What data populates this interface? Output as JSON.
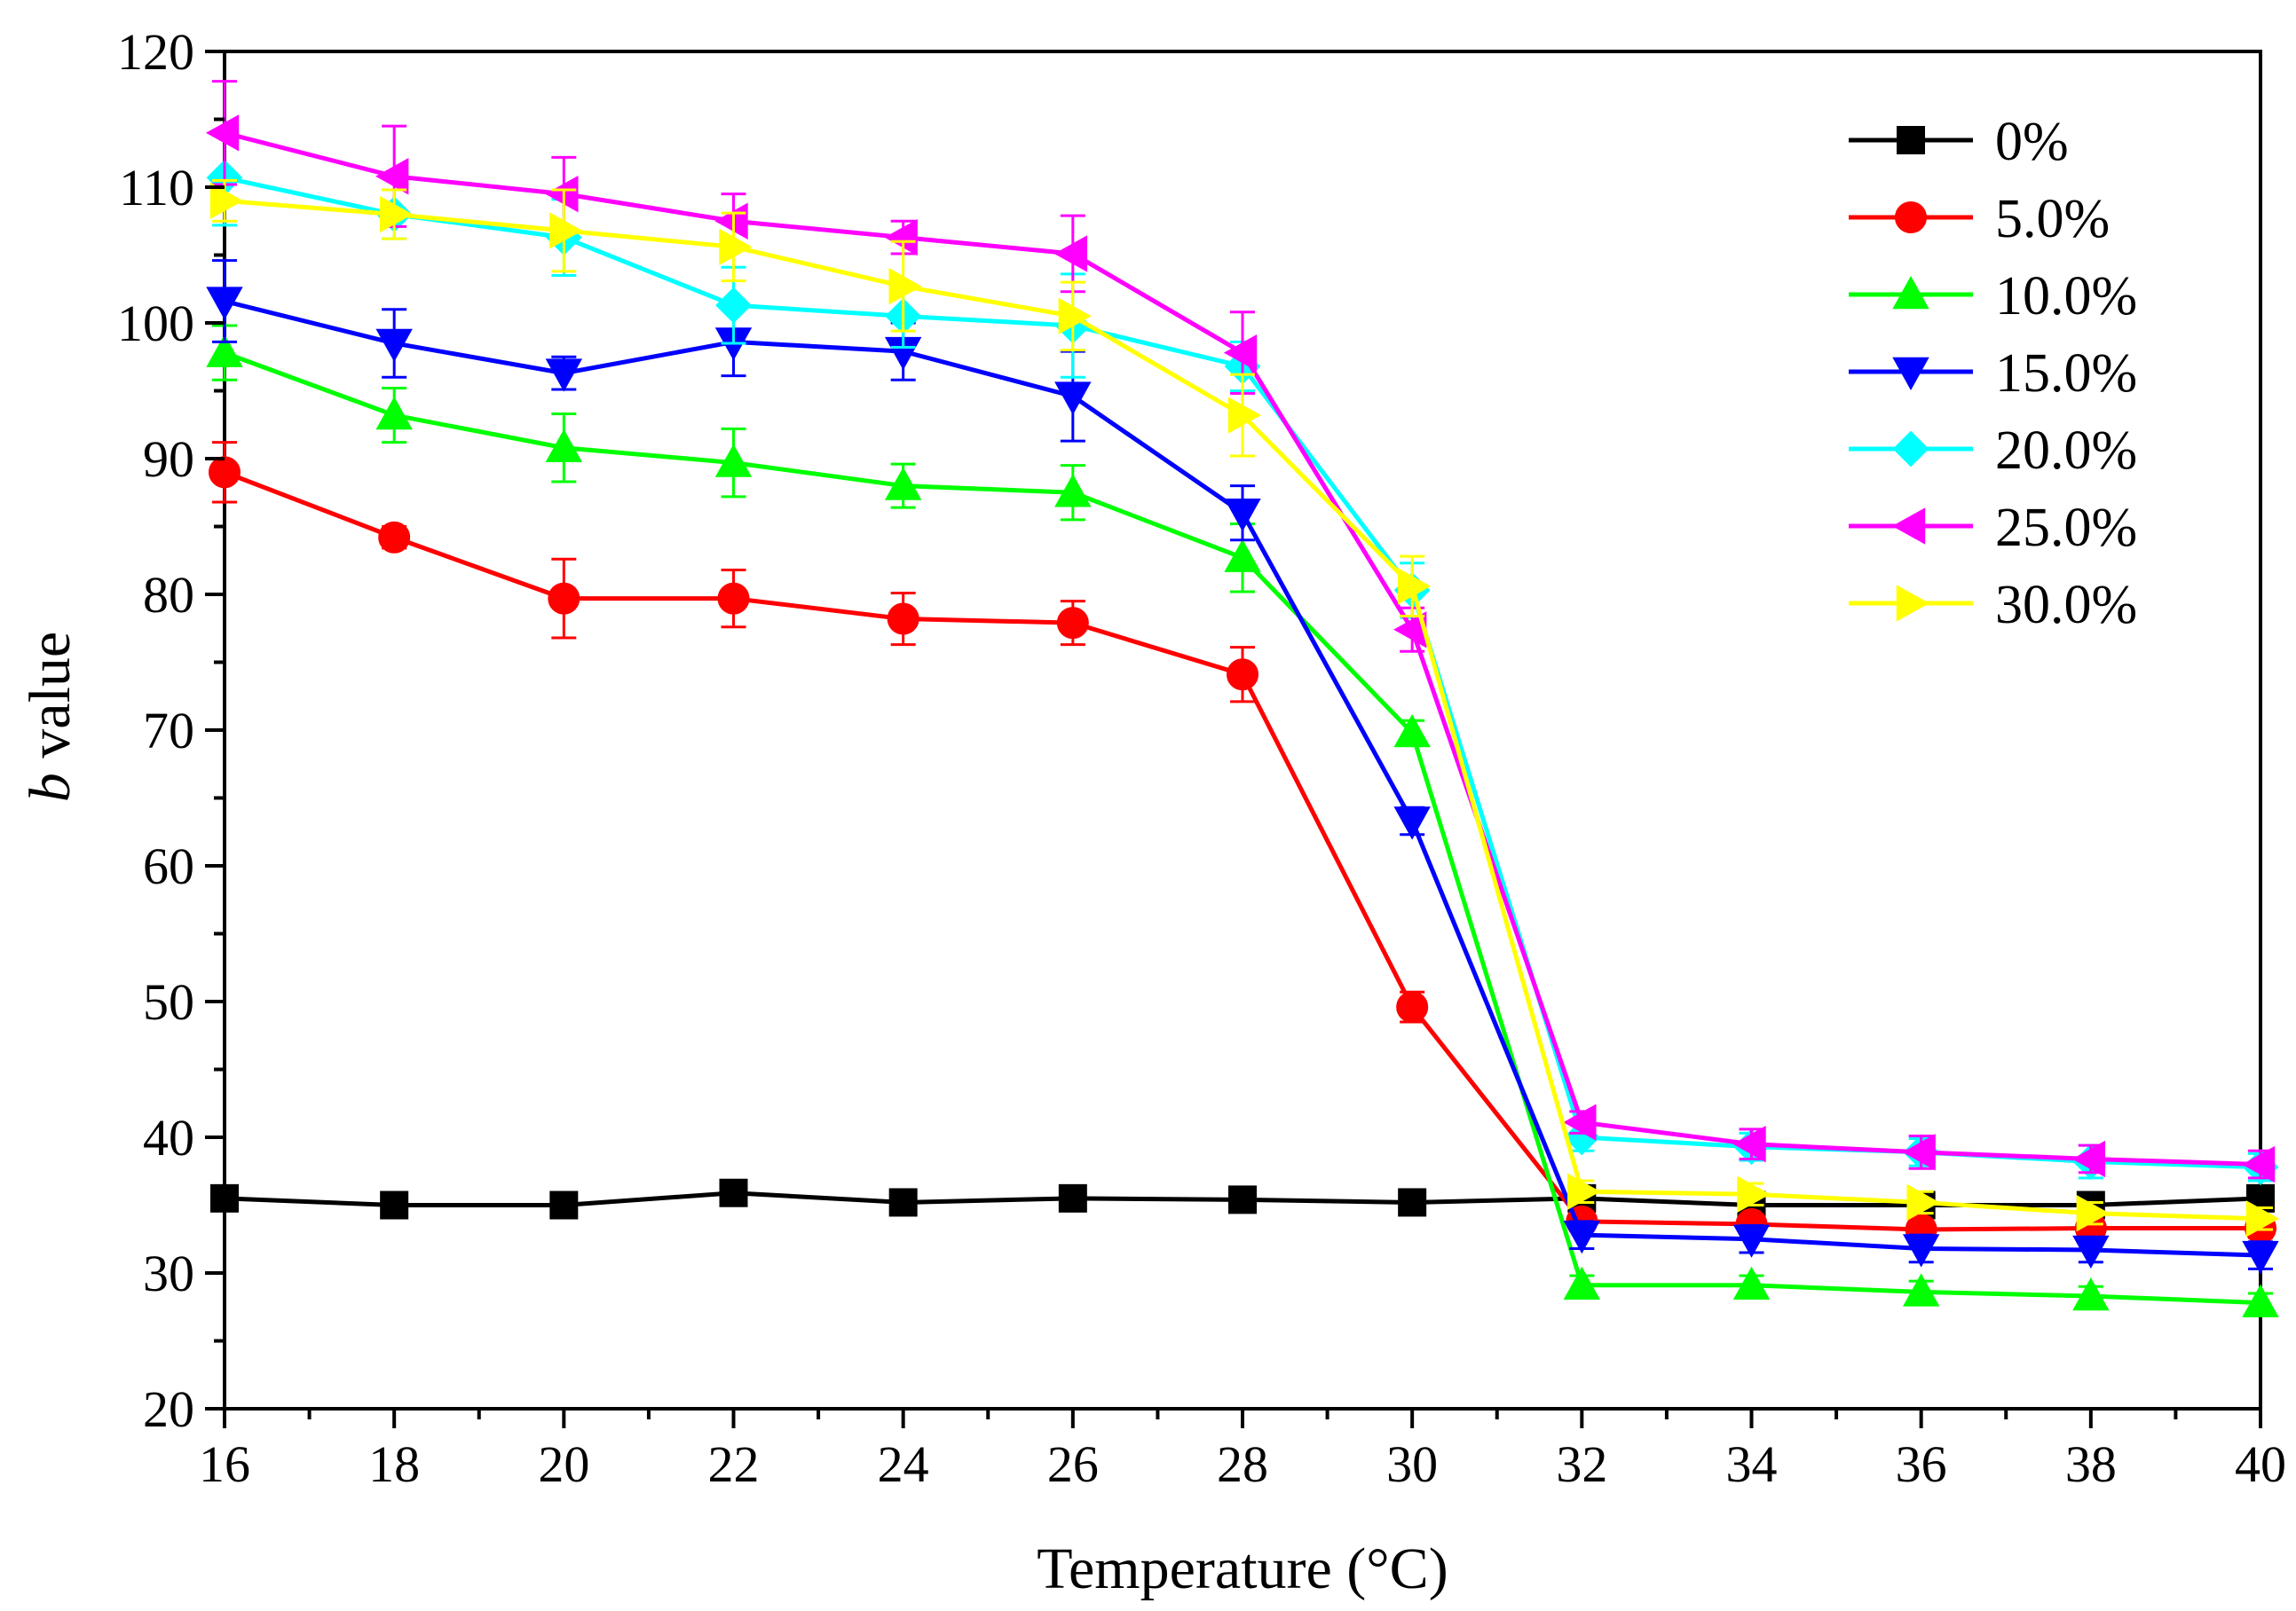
{
  "chart_data": {
    "type": "line",
    "title": "",
    "xlabel": "Temperature (°C)",
    "ylabel_italic": "b",
    "ylabel_rest": " value",
    "xlim": [
      16,
      40
    ],
    "ylim": [
      20,
      120
    ],
    "x_ticks": [
      16,
      18,
      20,
      22,
      24,
      26,
      28,
      30,
      32,
      34,
      36,
      38,
      40
    ],
    "y_ticks": [
      20,
      30,
      40,
      50,
      60,
      70,
      80,
      90,
      100,
      110,
      120
    ],
    "x_tick_labels": [
      "16",
      "18",
      "20",
      "22",
      "24",
      "26",
      "28",
      "30",
      "32",
      "34",
      "36",
      "38",
      "40"
    ],
    "y_tick_labels": [
      "20",
      "30",
      "40",
      "50",
      "60",
      "70",
      "80",
      "90",
      "100",
      "110",
      "120"
    ],
    "legend_position": "top-right",
    "grid": false,
    "x": [
      16,
      18,
      20,
      22,
      24,
      26,
      28,
      30,
      32,
      34,
      36,
      38,
      40
    ],
    "series": [
      {
        "name": "0%",
        "color": "#000000",
        "marker": "square",
        "values": [
          35.5,
          35.0,
          35.0,
          35.9,
          35.2,
          35.5,
          35.4,
          35.2,
          35.5,
          35.0,
          35.0,
          35.0,
          35.5
        ],
        "errors": [
          0.8,
          0.6,
          0.6,
          0.7,
          0.6,
          0.8,
          0.6,
          0.6,
          0.8,
          0.6,
          0.6,
          0.6,
          0.8
        ]
      },
      {
        "name": "5.0%",
        "color": "#ff0000",
        "marker": "circle",
        "values": [
          89.0,
          84.2,
          79.7,
          79.7,
          78.2,
          77.9,
          74.1,
          49.6,
          33.8,
          33.6,
          33.2,
          33.3,
          33.3
        ],
        "errors": [
          2.2,
          0.8,
          2.9,
          2.1,
          1.9,
          1.6,
          2.0,
          1.1,
          0.7,
          0.7,
          0.7,
          0.7,
          0.7
        ]
      },
      {
        "name": "10.0%",
        "color": "#00ff00",
        "marker": "triangle-up",
        "values": [
          97.8,
          93.2,
          90.8,
          89.7,
          88.0,
          87.5,
          82.7,
          69.8,
          29.1,
          29.1,
          28.6,
          28.3,
          27.8
        ],
        "errors": [
          2.0,
          2.0,
          2.5,
          2.5,
          1.6,
          2.0,
          2.5,
          0.9,
          0.7,
          0.7,
          0.8,
          0.7,
          0.7
        ]
      },
      {
        "name": "15.0%",
        "color": "#0000ff",
        "marker": "triangle-down",
        "values": [
          101.6,
          98.5,
          96.3,
          98.6,
          97.9,
          94.6,
          86.0,
          63.3,
          32.8,
          32.5,
          31.8,
          31.7,
          31.3
        ],
        "errors": [
          3.0,
          2.5,
          1.2,
          2.5,
          2.1,
          3.3,
          2.0,
          1.0,
          1.0,
          1.0,
          1.0,
          0.9,
          1.0
        ]
      },
      {
        "name": "20.0%",
        "color": "#00ffff",
        "marker": "diamond",
        "values": [
          110.7,
          108.0,
          106.3,
          101.3,
          100.5,
          99.8,
          96.8,
          80.3,
          40.0,
          39.3,
          38.9,
          38.2,
          37.8
        ],
        "errors": [
          3.5,
          1.8,
          2.8,
          2.8,
          2.3,
          3.8,
          1.8,
          2.0,
          1.0,
          1.0,
          1.0,
          1.2,
          1.0
        ]
      },
      {
        "name": "25.0%",
        "color": "#ff00ff",
        "marker": "triangle-left",
        "values": [
          114.0,
          110.8,
          109.5,
          107.5,
          106.3,
          105.1,
          97.8,
          77.4,
          41.1,
          39.5,
          38.9,
          38.4,
          38.0
        ],
        "errors": [
          3.8,
          3.7,
          2.7,
          2.0,
          1.2,
          2.8,
          3.0,
          1.6,
          0.8,
          1.1,
          1.2,
          1.0,
          1.0
        ]
      },
      {
        "name": "30.0%",
        "color": "#ffff00",
        "marker": "triangle-right",
        "values": [
          109.0,
          108.0,
          106.8,
          105.6,
          102.7,
          100.5,
          93.2,
          80.6,
          36.0,
          35.8,
          35.2,
          34.4,
          34.0
        ],
        "errors": [
          1.5,
          1.8,
          3.0,
          2.5,
          3.3,
          2.5,
          3.0,
          2.2,
          0.8,
          0.8,
          0.8,
          0.8,
          0.8
        ]
      }
    ]
  }
}
